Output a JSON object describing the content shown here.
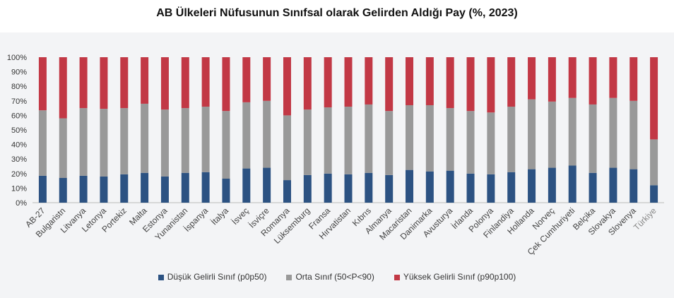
{
  "chart_data": {
    "type": "bar",
    "stacked": true,
    "title": "AB Ülkeleri Nüfusunun Sınıfsal olarak Gelirden Aldığı Pay (%, 2023)",
    "categories": [
      "AB-27",
      "Bulgaristn",
      "Litvanya",
      "Letonya",
      "Portekiz",
      "Malta",
      "Estonya",
      "Yunanistan",
      "İspanya",
      "İtalya",
      "İsveç",
      "İsviçre",
      "Romanya",
      "Lüksemburg",
      "Fransa",
      "Hırvatistan",
      "Kıbrıs",
      "Almanya",
      "Macaristan",
      "Danimarka",
      "Avusturya",
      "İrlanda",
      "Polonya",
      "Finlandiya",
      "Hollanda",
      "Norveç",
      "Çek Cumhuriyeti",
      "Belçika",
      "Slovakya",
      "Slovenya",
      "Türkiye"
    ],
    "series": [
      {
        "name": "Düşük Gelirli Sınıf (p0p50)",
        "color": "#2c5282",
        "values": [
          18.5,
          17,
          18.5,
          18,
          19.5,
          20.5,
          18,
          20.5,
          21,
          16.5,
          23.5,
          24,
          15.5,
          19,
          20,
          19.5,
          20.5,
          19,
          22.5,
          21.5,
          22,
          20,
          19.5,
          21,
          23,
          24,
          25.5,
          20.5,
          24,
          23,
          12
        ]
      },
      {
        "name": "Orta Sınıf (50<P<90)",
        "color": "#999999",
        "values": [
          45,
          41,
          46.5,
          46.5,
          45.5,
          47.5,
          46,
          44.5,
          45,
          46.5,
          45.5,
          46,
          44.5,
          45,
          45.5,
          46.5,
          47,
          44,
          44.5,
          45.5,
          43,
          43,
          42.5,
          45,
          48,
          45.5,
          46.5,
          47,
          48,
          47,
          31.5
        ]
      },
      {
        "name": "Yüksek Gelirli Sınıf (p90p100)",
        "color": "#c23845",
        "values": [
          36.5,
          42,
          35,
          35.5,
          35,
          32,
          36,
          35,
          34,
          37,
          31,
          30,
          40,
          36,
          34.5,
          34,
          32.5,
          37,
          33,
          33,
          35,
          37,
          38,
          34,
          29,
          30.5,
          28,
          32.5,
          28,
          30,
          56.5
        ]
      }
    ],
    "yticks": [
      "0%",
      "10%",
      "20%",
      "30%",
      "40%",
      "50%",
      "60%",
      "70%",
      "80%",
      "90%",
      "100%"
    ],
    "ylim": [
      0,
      100
    ],
    "highlight_category": "Türkiye",
    "grid": false,
    "legend_position": "bottom"
  }
}
